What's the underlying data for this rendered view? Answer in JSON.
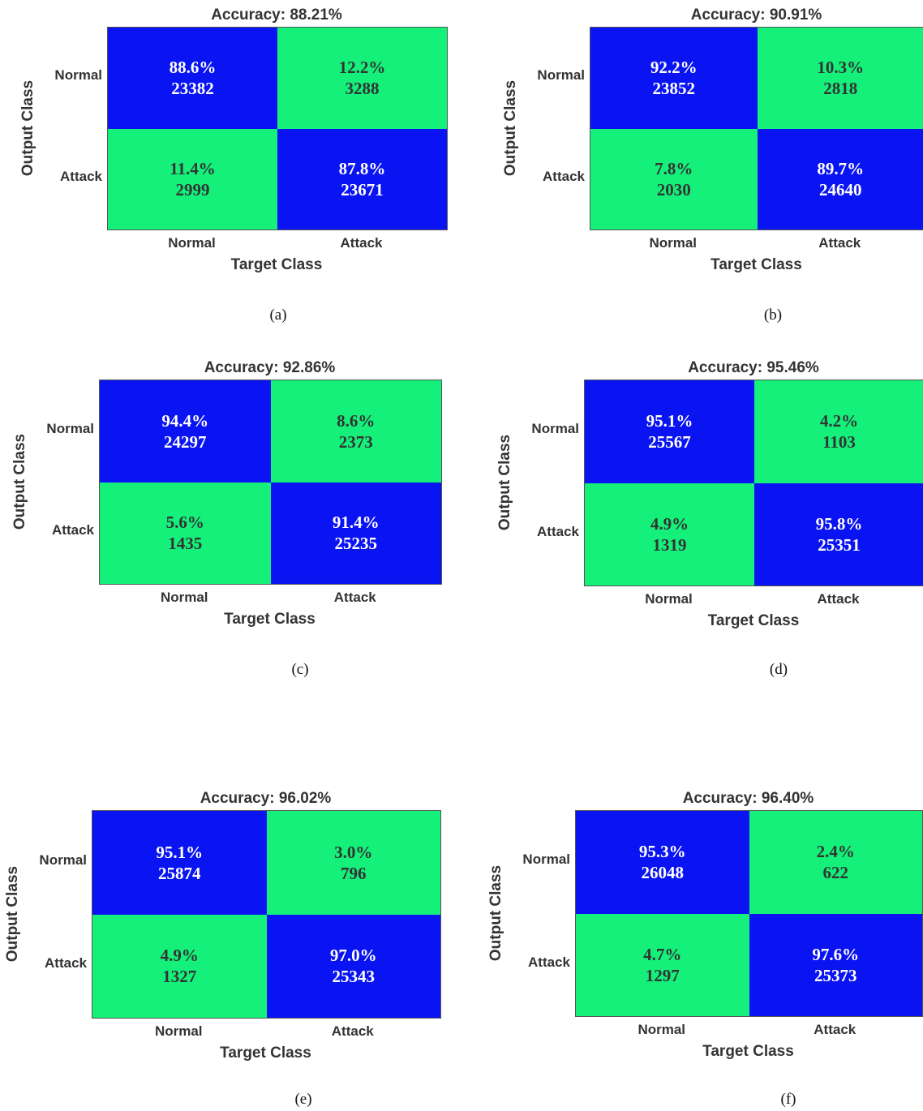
{
  "chart_data": [
    {
      "type": "heatmap",
      "title": "Accuracy: 88.21%",
      "caption": "(a)",
      "xlabel": "Target Class",
      "ylabel": "Output Class",
      "x_categories": [
        "Normal",
        "Attack"
      ],
      "y_categories": [
        "Normal",
        "Attack"
      ],
      "cells": [
        [
          {
            "pct": "88.6%",
            "count": "23382"
          },
          {
            "pct": "12.2%",
            "count": "3288"
          }
        ],
        [
          {
            "pct": "11.4%",
            "count": "2999"
          },
          {
            "pct": "87.8%",
            "count": "23671"
          }
        ]
      ]
    },
    {
      "type": "heatmap",
      "title": "Accuracy: 90.91%",
      "caption": "(b)",
      "xlabel": "Target Class",
      "ylabel": "Output Class",
      "x_categories": [
        "Normal",
        "Attack"
      ],
      "y_categories": [
        "Normal",
        "Attack"
      ],
      "cells": [
        [
          {
            "pct": "92.2%",
            "count": "23852"
          },
          {
            "pct": "10.3%",
            "count": "2818"
          }
        ],
        [
          {
            "pct": "7.8%",
            "count": "2030"
          },
          {
            "pct": "89.7%",
            "count": "24640"
          }
        ]
      ]
    },
    {
      "type": "heatmap",
      "title": "Accuracy: 92.86%",
      "caption": "(c)",
      "xlabel": "Target Class",
      "ylabel": "Output Class",
      "x_categories": [
        "Normal",
        "Attack"
      ],
      "y_categories": [
        "Normal",
        "Attack"
      ],
      "cells": [
        [
          {
            "pct": "94.4%",
            "count": "24297"
          },
          {
            "pct": "8.6%",
            "count": "2373"
          }
        ],
        [
          {
            "pct": "5.6%",
            "count": "1435"
          },
          {
            "pct": "91.4%",
            "count": "25235"
          }
        ]
      ]
    },
    {
      "type": "heatmap",
      "title": "Accuracy: 95.46%",
      "caption": "(d)",
      "xlabel": "Target Class",
      "ylabel": "Output Class",
      "x_categories": [
        "Normal",
        "Attack"
      ],
      "y_categories": [
        "Normal",
        "Attack"
      ],
      "cells": [
        [
          {
            "pct": "95.1%",
            "count": "25567"
          },
          {
            "pct": "4.2%",
            "count": "1103"
          }
        ],
        [
          {
            "pct": "4.9%",
            "count": "1319"
          },
          {
            "pct": "95.8%",
            "count": "25351"
          }
        ]
      ]
    },
    {
      "type": "heatmap",
      "title": "Accuracy: 96.02%",
      "caption": "(e)",
      "xlabel": "Target Class",
      "ylabel": "Output Class",
      "x_categories": [
        "Normal",
        "Attack"
      ],
      "y_categories": [
        "Normal",
        "Attack"
      ],
      "cells": [
        [
          {
            "pct": "95.1%",
            "count": "25874"
          },
          {
            "pct": "3.0%",
            "count": "796"
          }
        ],
        [
          {
            "pct": "4.9%",
            "count": "1327"
          },
          {
            "pct": "97.0%",
            "count": "25343"
          }
        ]
      ]
    },
    {
      "type": "heatmap",
      "title": "Accuracy: 96.40%",
      "caption": "(f)",
      "xlabel": "Target Class",
      "ylabel": "Output Class",
      "x_categories": [
        "Normal",
        "Attack"
      ],
      "y_categories": [
        "Normal",
        "Attack"
      ],
      "cells": [
        [
          {
            "pct": "95.3%",
            "count": "26048"
          },
          {
            "pct": "2.4%",
            "count": "622"
          }
        ],
        [
          {
            "pct": "4.7%",
            "count": "1297"
          },
          {
            "pct": "97.6%",
            "count": "25373"
          }
        ]
      ]
    }
  ],
  "colors": {
    "diagonal": "#0a14f2",
    "off_diagonal": "#14f07a"
  }
}
